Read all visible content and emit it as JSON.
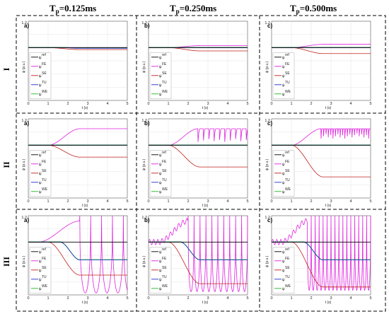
{
  "figure": {
    "column_titles": [
      {
        "main": "T",
        "sub": "p",
        "rest": "=0.125ms"
      },
      {
        "main": "T",
        "sub": "p",
        "rest": "=0.250ms"
      },
      {
        "main": "T",
        "sub": "p",
        "rest": "=0.500ms"
      }
    ],
    "row_labels": [
      "I",
      "II",
      "III"
    ],
    "panel_letters": [
      "a)",
      "b)",
      "c)"
    ]
  },
  "chart_data": {
    "type": "line",
    "grid": true,
    "xlabel": "t (s)",
    "ylabel": "ψ (p.u.)",
    "xlim": [
      0,
      5
    ],
    "ylim": [
      0,
      1.2
    ],
    "xticks": [
      "0",
      "1",
      "2",
      "3",
      "4",
      "5"
    ],
    "ytick_top": "1.2",
    "legend_position": "bottom-left",
    "legend": [
      {
        "label": "ψ",
        "sup": "ref",
        "color": "#000000"
      },
      {
        "label": "ψ",
        "sup": "FE",
        "color": "#e020e0"
      },
      {
        "label": "ψ",
        "sup": "SE",
        "color": "#c0201a"
      },
      {
        "label": "ψ",
        "sup": "TU",
        "color": "#1f2fd0"
      },
      {
        "label": "ψ",
        "sup": "WE",
        "color": "#22bb22"
      }
    ],
    "panels": [
      {
        "row": "I",
        "col": "Tp=0.125ms",
        "ref": 0.8,
        "fe_final": 0.8,
        "se_final": 0.77,
        "tu_final": 0.79,
        "we_final": 0.79,
        "oscillating": false
      },
      {
        "row": "I",
        "col": "Tp=0.250ms",
        "ref": 0.8,
        "fe_final": 0.83,
        "se_final": 0.75,
        "tu_final": 0.8,
        "we_final": 0.8,
        "oscillating": false
      },
      {
        "row": "I",
        "col": "Tp=0.500ms",
        "ref": 0.8,
        "fe_final": 0.85,
        "se_final": 0.71,
        "tu_final": 0.8,
        "we_final": 0.8,
        "oscillating": false
      },
      {
        "row": "II",
        "col": "Tp=0.125ms",
        "ref": 0.8,
        "fe_final": 1.05,
        "se_final": 0.62,
        "tu_final": 0.8,
        "we_final": 0.8,
        "oscillating": false
      },
      {
        "row": "II",
        "col": "Tp=0.250ms",
        "ref": 0.8,
        "fe_final": 1.05,
        "se_final": 0.47,
        "tu_final": 0.8,
        "we_final": 0.8,
        "oscillating": true,
        "fe_osc_min": 0.85
      },
      {
        "row": "II",
        "col": "Tp=0.500ms",
        "ref": 0.8,
        "fe_final": 1.05,
        "se_final": 0.32,
        "tu_final": 0.8,
        "we_final": 0.8,
        "oscillating": true,
        "fe_osc_min": 0.9
      },
      {
        "row": "III",
        "col": "Tp=0.125ms",
        "ref": 0.8,
        "fe_final": 0.5,
        "se_final": 0.3,
        "tu_final": 0.53,
        "we_final": 0.53,
        "oscillating": true,
        "fe_osc_min": 0.03
      },
      {
        "row": "III",
        "col": "Tp=0.250ms",
        "ref": 0.8,
        "fe_final": 0.5,
        "se_final": 0.17,
        "tu_final": 0.53,
        "we_final": 0.53,
        "oscillating": true,
        "fe_osc_min": 0.05
      },
      {
        "row": "III",
        "col": "Tp=0.500ms",
        "ref": 0.8,
        "fe_final": 0.5,
        "se_final": 0.12,
        "tu_final": 0.53,
        "we_final": 0.53,
        "oscillating": true,
        "fe_osc_min": 0.07
      }
    ]
  }
}
